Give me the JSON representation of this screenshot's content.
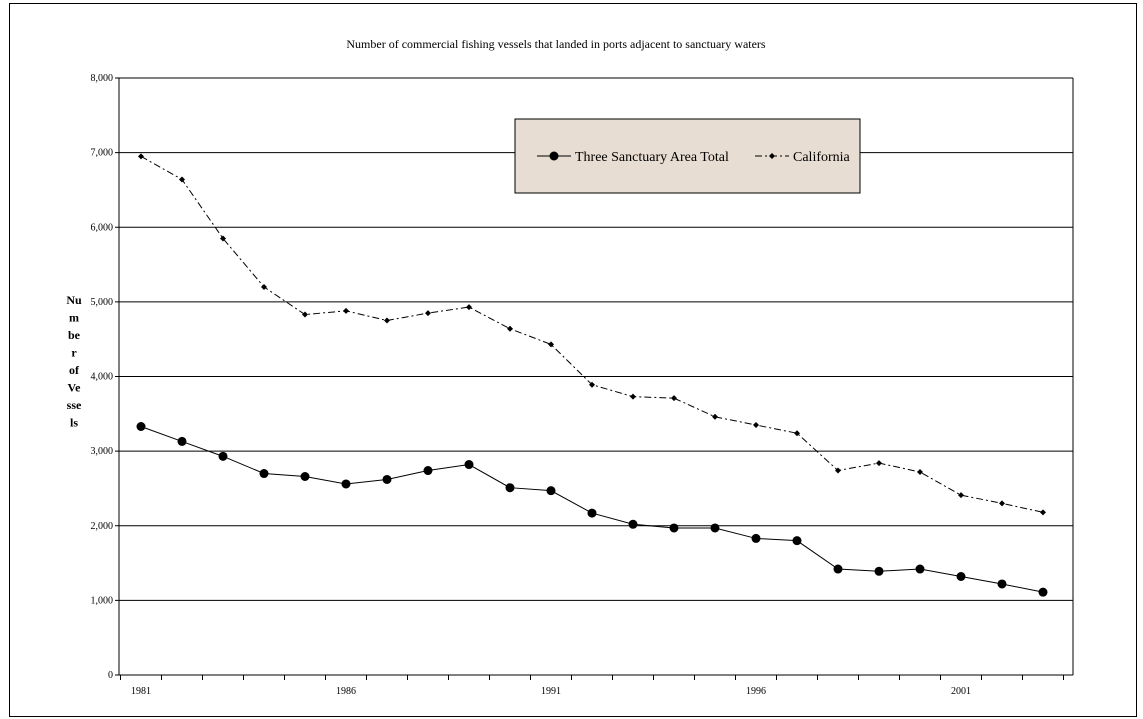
{
  "chart_data": {
    "type": "line",
    "title": "Number of commercial fishing vessels that landed in ports adjacent to sanctuary waters",
    "ylabel_lines": [
      "Nu",
      "m",
      "be",
      "r",
      "of",
      "Ve",
      "sse",
      "ls"
    ],
    "xlabel": "",
    "x": [
      1981,
      1982,
      1983,
      1984,
      1985,
      1986,
      1987,
      1988,
      1989,
      1990,
      1991,
      1992,
      1993,
      1994,
      1995,
      1996,
      1997,
      1998,
      1999,
      2000,
      2001,
      2002,
      2003
    ],
    "x_tick_labels": [
      "1981",
      "1986",
      "1991",
      "1996",
      "2001"
    ],
    "y_tick_labels": [
      "0",
      "1,000",
      "2,000",
      "3,000",
      "4,000",
      "5,000",
      "6,000",
      "7,000",
      "8,000"
    ],
    "ylim": [
      0,
      8000
    ],
    "grid": "horizontal",
    "legend_position": "top-center",
    "series": [
      {
        "name": "Three Sanctuary Area Total",
        "style": "solid-circle",
        "color": "#000000",
        "values": [
          3330,
          3130,
          2930,
          2700,
          2660,
          2560,
          2620,
          2740,
          2820,
          2510,
          2470,
          2170,
          2020,
          1970,
          1970,
          1830,
          1800,
          1420,
          1390,
          1420,
          1320,
          1220,
          1110
        ]
      },
      {
        "name": "California",
        "style": "dashdot-diamond",
        "color": "#000000",
        "values": [
          6950,
          6640,
          5850,
          5200,
          4830,
          4880,
          4750,
          4850,
          4930,
          4640,
          4430,
          3890,
          3730,
          3710,
          3460,
          3350,
          3240,
          2740,
          2840,
          2720,
          2410,
          2300,
          2180
        ]
      }
    ]
  },
  "colors": {
    "legend_bg": "#e8ddd2",
    "plot_bg": "#ffffff",
    "axis": "#000000"
  }
}
